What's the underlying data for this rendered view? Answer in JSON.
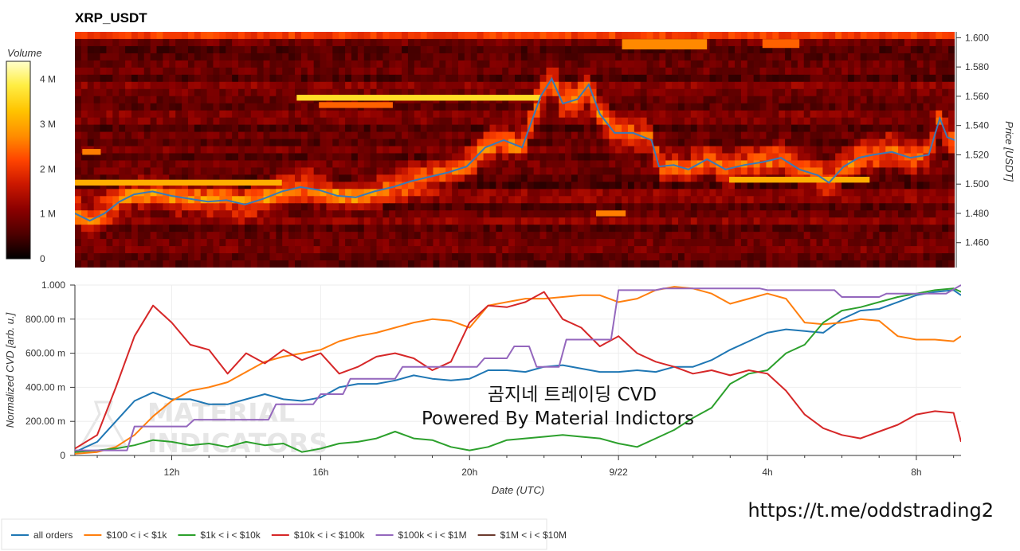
{
  "chart_data": [
    {
      "type": "heatmap",
      "title": "XRP_USDT",
      "ylabel": "Price [USDT]",
      "ylim": [
        1.443,
        1.604
      ],
      "yticks": [
        1.46,
        1.48,
        1.5,
        1.52,
        1.54,
        1.56,
        1.58,
        1.6
      ],
      "ytick_labels": [
        "1.460",
        "1.480",
        "1.500",
        "1.520",
        "1.540",
        "1.560",
        "1.580",
        "1.600"
      ],
      "colorbar": {
        "label": "Volume",
        "range": [
          0,
          4400000
        ],
        "ticks": [
          0,
          1000000,
          2000000,
          3000000,
          4000000
        ],
        "tick_labels": [
          "0",
          "1 M",
          "2 M",
          "3 M",
          "4 M"
        ],
        "colors": [
          "#000000",
          "#4a0000",
          "#8b0000",
          "#cc1800",
          "#ff4400",
          "#ff8c00",
          "#ffc400",
          "#ffee44",
          "#ffffcc"
        ]
      },
      "x_hours": [
        9.4,
        33.2
      ],
      "price_series": {
        "color": "#3a7ab8",
        "points": [
          [
            9.4,
            1.48
          ],
          [
            9.8,
            1.475
          ],
          [
            10.2,
            1.48
          ],
          [
            10.6,
            1.488
          ],
          [
            11.0,
            1.493
          ],
          [
            11.5,
            1.495
          ],
          [
            12.0,
            1.492
          ],
          [
            12.5,
            1.49
          ],
          [
            13.0,
            1.488
          ],
          [
            13.5,
            1.489
          ],
          [
            14.0,
            1.486
          ],
          [
            14.5,
            1.49
          ],
          [
            15.0,
            1.495
          ],
          [
            15.5,
            1.498
          ],
          [
            16.0,
            1.496
          ],
          [
            16.5,
            1.492
          ],
          [
            17.0,
            1.491
          ],
          [
            17.5,
            1.495
          ],
          [
            18.0,
            1.498
          ],
          [
            18.5,
            1.502
          ],
          [
            19.0,
            1.505
          ],
          [
            19.5,
            1.508
          ],
          [
            20.0,
            1.512
          ],
          [
            20.5,
            1.525
          ],
          [
            21.0,
            1.53
          ],
          [
            21.5,
            1.525
          ],
          [
            22.0,
            1.56
          ],
          [
            22.3,
            1.572
          ],
          [
            22.6,
            1.555
          ],
          [
            23.0,
            1.558
          ],
          [
            23.3,
            1.568
          ],
          [
            23.6,
            1.548
          ],
          [
            24.0,
            1.535
          ],
          [
            24.5,
            1.535
          ],
          [
            25.0,
            1.53
          ],
          [
            25.2,
            1.512
          ],
          [
            25.6,
            1.513
          ],
          [
            26.0,
            1.51
          ],
          [
            26.5,
            1.517
          ],
          [
            27.0,
            1.51
          ],
          [
            27.5,
            1.513
          ],
          [
            28.0,
            1.515
          ],
          [
            28.5,
            1.518
          ],
          [
            29.0,
            1.51
          ],
          [
            29.5,
            1.506
          ],
          [
            29.8,
            1.501
          ],
          [
            30.2,
            1.512
          ],
          [
            30.6,
            1.518
          ],
          [
            31.0,
            1.52
          ],
          [
            31.5,
            1.522
          ],
          [
            32.0,
            1.518
          ],
          [
            32.5,
            1.52
          ],
          [
            32.8,
            1.545
          ],
          [
            33.0,
            1.532
          ],
          [
            33.2,
            1.53
          ]
        ]
      }
    },
    {
      "type": "line",
      "xlabel": "Date (UTC)",
      "ylabel": "Normalized CVD [arb. u.]",
      "ylim": [
        0,
        1
      ],
      "xlim_hours": [
        9.4,
        33.2
      ],
      "yticks": [
        0,
        0.2,
        0.4,
        0.6,
        0.8,
        1.0
      ],
      "ytick_labels": [
        "0",
        "200.00 m",
        "400.00 m",
        "600.00 m",
        "800.00 m",
        "1.000"
      ],
      "xticks_hours": [
        12,
        16,
        20,
        24,
        28,
        32
      ],
      "xtick_labels": [
        "12h",
        "16h",
        "20h",
        "9/22",
        "4h",
        "8h"
      ],
      "series": [
        {
          "name": "all orders",
          "color": "#1f77b4",
          "x": [
            9.4,
            10,
            10.5,
            11,
            11.5,
            12,
            12.5,
            13,
            13.5,
            14,
            14.5,
            15,
            15.5,
            16,
            16.5,
            17,
            17.5,
            18,
            18.5,
            19,
            19.5,
            20,
            20.5,
            21,
            21.5,
            22,
            22.5,
            23,
            23.5,
            24,
            24.5,
            25,
            25.5,
            26,
            26.5,
            27,
            27.5,
            28,
            28.5,
            29,
            29.5,
            30,
            30.5,
            31,
            31.5,
            32,
            32.5,
            33,
            33.2
          ],
          "values": [
            0.02,
            0.08,
            0.2,
            0.32,
            0.37,
            0.33,
            0.33,
            0.3,
            0.3,
            0.33,
            0.36,
            0.33,
            0.32,
            0.34,
            0.4,
            0.42,
            0.42,
            0.44,
            0.47,
            0.45,
            0.44,
            0.45,
            0.5,
            0.5,
            0.49,
            0.52,
            0.53,
            0.51,
            0.49,
            0.49,
            0.5,
            0.49,
            0.52,
            0.52,
            0.56,
            0.62,
            0.67,
            0.72,
            0.74,
            0.73,
            0.72,
            0.8,
            0.85,
            0.86,
            0.9,
            0.94,
            0.96,
            0.97,
            0.94
          ]
        },
        {
          "name": "$100 < i < $1k",
          "color": "#ff7f0e",
          "x": [
            9.4,
            10,
            10.5,
            11,
            11.5,
            12,
            12.5,
            13,
            13.5,
            14,
            14.5,
            15,
            15.5,
            16,
            16.5,
            17,
            17.5,
            18,
            18.5,
            19,
            19.5,
            20,
            20.5,
            21,
            21.5,
            22,
            22.5,
            23,
            23.5,
            24,
            24.5,
            25,
            25.5,
            26,
            26.5,
            27,
            27.5,
            28,
            28.5,
            29,
            29.5,
            30,
            30.5,
            31,
            31.5,
            32,
            32.5,
            33,
            33.2
          ],
          "values": [
            0.01,
            0.02,
            0.05,
            0.12,
            0.23,
            0.32,
            0.38,
            0.4,
            0.43,
            0.49,
            0.55,
            0.58,
            0.6,
            0.62,
            0.67,
            0.7,
            0.72,
            0.75,
            0.78,
            0.8,
            0.79,
            0.75,
            0.88,
            0.9,
            0.92,
            0.92,
            0.93,
            0.94,
            0.94,
            0.9,
            0.92,
            0.97,
            0.99,
            0.98,
            0.95,
            0.89,
            0.92,
            0.95,
            0.92,
            0.78,
            0.77,
            0.78,
            0.8,
            0.79,
            0.7,
            0.68,
            0.68,
            0.67,
            0.7
          ]
        },
        {
          "name": "$1k < i < $10k",
          "color": "#2ca02c",
          "x": [
            9.4,
            10,
            10.5,
            11,
            11.5,
            12,
            12.5,
            13,
            13.5,
            14,
            14.5,
            15,
            15.5,
            16,
            16.5,
            17,
            17.5,
            18,
            18.5,
            19,
            19.5,
            20,
            20.5,
            21,
            21.5,
            22,
            22.5,
            23,
            23.5,
            24,
            24.5,
            25,
            25.5,
            26,
            26.5,
            27,
            27.5,
            28,
            28.5,
            29,
            29.5,
            30,
            30.5,
            31,
            31.5,
            32,
            32.5,
            33,
            33.2
          ],
          "values": [
            0.02,
            0.03,
            0.04,
            0.06,
            0.09,
            0.08,
            0.06,
            0.07,
            0.05,
            0.08,
            0.06,
            0.07,
            0.02,
            0.04,
            0.07,
            0.08,
            0.1,
            0.14,
            0.1,
            0.09,
            0.05,
            0.03,
            0.05,
            0.09,
            0.1,
            0.11,
            0.12,
            0.11,
            0.1,
            0.07,
            0.05,
            0.1,
            0.15,
            0.22,
            0.28,
            0.42,
            0.48,
            0.5,
            0.6,
            0.65,
            0.78,
            0.85,
            0.87,
            0.9,
            0.93,
            0.95,
            0.97,
            0.98,
            0.96
          ]
        },
        {
          "name": "$10k < i < $100k",
          "color": "#d62728",
          "x": [
            9.4,
            10,
            10.5,
            11,
            11.5,
            12,
            12.5,
            13,
            13.5,
            14,
            14.5,
            15,
            15.5,
            16,
            16.5,
            17,
            17.5,
            18,
            18.5,
            19,
            19.5,
            20,
            20.5,
            21,
            21.5,
            22,
            22.5,
            23,
            23.5,
            24,
            24.5,
            25,
            25.5,
            26,
            26.5,
            27,
            27.5,
            28,
            28.5,
            29,
            29.5,
            30,
            30.5,
            31,
            31.5,
            32,
            32.5,
            33,
            33.2
          ],
          "values": [
            0.04,
            0.12,
            0.4,
            0.7,
            0.88,
            0.78,
            0.65,
            0.62,
            0.48,
            0.6,
            0.54,
            0.62,
            0.56,
            0.6,
            0.48,
            0.52,
            0.58,
            0.6,
            0.57,
            0.5,
            0.55,
            0.78,
            0.88,
            0.87,
            0.9,
            0.96,
            0.8,
            0.75,
            0.64,
            0.7,
            0.6,
            0.55,
            0.52,
            0.48,
            0.5,
            0.47,
            0.5,
            0.48,
            0.38,
            0.24,
            0.16,
            0.12,
            0.1,
            0.14,
            0.18,
            0.24,
            0.26,
            0.25,
            0.08
          ]
        },
        {
          "name": "$100k < i < $1M",
          "color": "#9467bd",
          "x": [
            9.4,
            10.8,
            11.0,
            12.4,
            12.6,
            14.6,
            14.8,
            15.8,
            16.0,
            16.6,
            16.8,
            18.0,
            18.2,
            20.2,
            20.4,
            21.0,
            21.2,
            21.6,
            21.8,
            22.4,
            22.6,
            23.8,
            24.0,
            25.0,
            25.2,
            27.8,
            28.0,
            29.8,
            30.0,
            31.0,
            31.2,
            32.8,
            33.2
          ],
          "values": [
            0.03,
            0.03,
            0.17,
            0.17,
            0.21,
            0.21,
            0.3,
            0.3,
            0.36,
            0.36,
            0.45,
            0.45,
            0.52,
            0.52,
            0.57,
            0.57,
            0.64,
            0.64,
            0.52,
            0.52,
            0.68,
            0.68,
            0.97,
            0.97,
            0.98,
            0.98,
            0.97,
            0.97,
            0.93,
            0.93,
            0.95,
            0.95,
            1.0
          ]
        },
        {
          "name": "$1M < i < $10M",
          "color": "#6b3a2e",
          "x": [],
          "values": []
        }
      ],
      "annotations": [
        "곰지네 트레이딩 CVD",
        "Powered By Material Indictors"
      ],
      "watermark": [
        "MATERIAL",
        "INDICATORS"
      ],
      "legend_position": "bottom-left"
    }
  ],
  "link": "https://t.me/oddstrading2"
}
